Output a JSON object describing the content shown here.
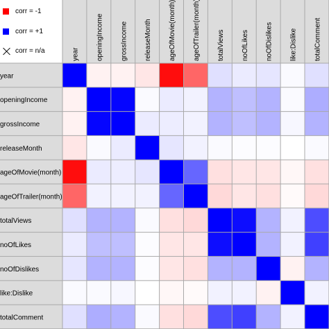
{
  "legend": {
    "neg_label": "corr = -1",
    "pos_label": "corr = +1",
    "na_label": "corr = n/a",
    "neg_color": "#ff0000",
    "pos_color": "#0000ff",
    "na_icon": "cross-icon"
  },
  "colors": {
    "header_bg": "#dcdcdc",
    "grid_line": "#a9a9a9",
    "negative": "#ff0000",
    "positive": "#0000ff"
  },
  "chart_data": {
    "type": "heatmap",
    "title": "",
    "xlabel": "",
    "ylabel": "",
    "variables": [
      "year",
      "openingIncome",
      "grossIncome",
      "releaseMonth",
      "ageOfMovie(month)",
      "ageOfTrailer(month)",
      "totalViews",
      "noOfLikes",
      "noOfDislikes",
      "like:Dislike",
      "totalComment"
    ],
    "column_labels": [
      "year",
      "openingIncome",
      "grossIncome",
      "releaseMonth",
      "ageOfMovie(month)",
      "ageOfTrailer(month)",
      "totalViews",
      "noOfLikes",
      "noOfDislikes",
      "like:Dislike",
      "totalComment"
    ],
    "row_labels": [
      "year",
      "openingIncome",
      "grossIncome",
      "releaseMonth",
      "ageOfMovie(month)",
      "ageOfTrailer(month)",
      "totalViews",
      "noOfLikes",
      "noOfDislikes",
      "like:Dislike",
      "totalComment"
    ],
    "value_range": [
      -1,
      1
    ],
    "matrix": [
      [
        1.0,
        -0.05,
        -0.05,
        -0.1,
        -0.95,
        -0.6,
        0.12,
        0.08,
        0.1,
        0.02,
        0.12
      ],
      [
        -0.05,
        1.0,
        0.98,
        0.02,
        0.08,
        0.05,
        0.3,
        0.25,
        0.3,
        0.02,
        0.32
      ],
      [
        -0.05,
        0.98,
        1.0,
        0.08,
        0.07,
        0.05,
        0.3,
        0.25,
        0.3,
        0.03,
        0.3
      ],
      [
        -0.1,
        0.02,
        0.08,
        1.0,
        0.1,
        0.05,
        0.02,
        0.01,
        0.01,
        0.0,
        0.02
      ],
      [
        -0.95,
        0.08,
        0.07,
        0.1,
        1.0,
        0.6,
        -0.12,
        -0.1,
        -0.1,
        -0.03,
        -0.12
      ],
      [
        -0.6,
        0.05,
        0.05,
        0.05,
        0.6,
        1.0,
        -0.15,
        -0.1,
        -0.12,
        -0.02,
        -0.15
      ],
      [
        0.12,
        0.3,
        0.3,
        0.02,
        -0.12,
        -0.15,
        1.0,
        0.95,
        0.3,
        0.05,
        0.7
      ],
      [
        0.08,
        0.25,
        0.25,
        0.01,
        -0.1,
        -0.1,
        0.95,
        1.0,
        0.3,
        0.05,
        0.75
      ],
      [
        0.1,
        0.3,
        0.3,
        0.01,
        -0.1,
        -0.12,
        0.3,
        0.3,
        1.0,
        -0.05,
        0.3
      ],
      [
        0.02,
        0.02,
        0.03,
        0.0,
        -0.03,
        -0.02,
        0.05,
        0.05,
        -0.05,
        1.0,
        0.05
      ],
      [
        0.12,
        0.32,
        0.3,
        0.02,
        -0.12,
        -0.15,
        0.7,
        0.75,
        0.3,
        0.05,
        1.0
      ]
    ]
  }
}
